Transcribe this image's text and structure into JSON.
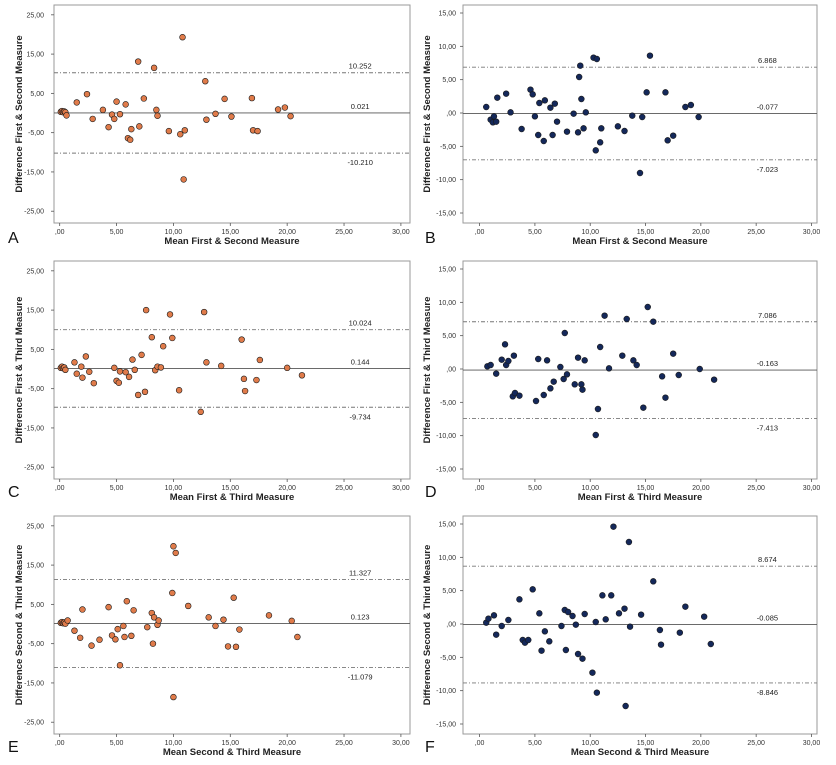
{
  "colors": {
    "orange": "#e07b4a",
    "navy": "#14285a",
    "frame": "#9a9a9a",
    "refline": "#777777"
  },
  "chart_data": [
    {
      "type": "scatter",
      "panel": "A",
      "xlabel": "Mean First & Second Measure",
      "ylabel": "Difference First & Second Measure",
      "xlim": [
        -0.5,
        30.8
      ],
      "ylim": [
        -28,
        27.5
      ],
      "xticks": [
        ",00",
        "5,00",
        "10,00",
        "15,00",
        "20,00",
        "25,00",
        "30,00"
      ],
      "yticks": [
        "25,00",
        "15,00",
        "5,00",
        "-5,00",
        "-15,00",
        "-25,00"
      ],
      "marker_color": "orange",
      "reference_lines": [
        {
          "value": 10.252,
          "label": "10.252",
          "style": "dashdot"
        },
        {
          "value": 0.021,
          "label": "0.021",
          "style": "solid"
        },
        {
          "value": -10.21,
          "label": "-10.210",
          "style": "dashdot"
        }
      ],
      "points": [
        [
          0.1,
          0.3
        ],
        [
          0.2,
          0.5
        ],
        [
          0.3,
          0.2
        ],
        [
          0.4,
          0.4
        ],
        [
          0.5,
          0.2
        ],
        [
          0.6,
          -0.6
        ],
        [
          1.5,
          2.7
        ],
        [
          2.4,
          4.8
        ],
        [
          2.9,
          -1.5
        ],
        [
          3.8,
          0.8
        ],
        [
          4.3,
          -3.6
        ],
        [
          4.6,
          -0.4
        ],
        [
          4.8,
          -1.5
        ],
        [
          5.0,
          2.9
        ],
        [
          5.3,
          -0.3
        ],
        [
          5.8,
          2.2
        ],
        [
          6.0,
          -6.4
        ],
        [
          6.2,
          -6.8
        ],
        [
          6.3,
          -4.1
        ],
        [
          6.9,
          13.1
        ],
        [
          7.0,
          -3.4
        ],
        [
          7.4,
          3.7
        ],
        [
          8.3,
          11.5
        ],
        [
          8.5,
          0.8
        ],
        [
          8.6,
          -0.7
        ],
        [
          9.6,
          -4.6
        ],
        [
          10.6,
          -5.4
        ],
        [
          10.8,
          19.3
        ],
        [
          10.9,
          -16.9
        ],
        [
          11.0,
          -4.4
        ],
        [
          12.8,
          8.1
        ],
        [
          12.9,
          -1.7
        ],
        [
          13.7,
          -0.2
        ],
        [
          14.5,
          3.6
        ],
        [
          15.1,
          -0.9
        ],
        [
          16.9,
          3.8
        ],
        [
          17.0,
          -4.4
        ],
        [
          17.4,
          -4.6
        ],
        [
          19.2,
          0.9
        ],
        [
          19.8,
          1.4
        ],
        [
          20.3,
          -0.8
        ]
      ]
    },
    {
      "type": "scatter",
      "panel": "B",
      "xlabel": "Mean First & Second Measure",
      "ylabel": "Difference First & Second Measure",
      "xlim": [
        -1.5,
        30.5
      ],
      "ylim": [
        -16.5,
        16.2
      ],
      "xticks": [
        ",00",
        "5,00",
        "10,00",
        "15,00",
        "20,00",
        "25,00",
        "30,00"
      ],
      "yticks": [
        "15,00",
        "10,00",
        "5,00",
        ",00",
        "-5,00",
        "-10,00",
        "-15,00"
      ],
      "marker_color": "navy",
      "reference_lines": [
        {
          "value": 6.868,
          "label": "6.868",
          "style": "dashdot"
        },
        {
          "value": -0.077,
          "label": "-0.077",
          "style": "solid"
        },
        {
          "value": -7.023,
          "label": "-7.023",
          "style": "dashdot"
        }
      ],
      "points": [
        [
          0.6,
          0.9
        ],
        [
          1.0,
          -1.0
        ],
        [
          1.2,
          -1.4
        ],
        [
          1.3,
          -0.5
        ],
        [
          1.5,
          -1.3
        ],
        [
          1.6,
          2.3
        ],
        [
          2.4,
          2.9
        ],
        [
          2.8,
          0.1
        ],
        [
          3.8,
          -2.4
        ],
        [
          4.6,
          3.5
        ],
        [
          4.8,
          2.8
        ],
        [
          5.0,
          -0.5
        ],
        [
          5.3,
          -3.3
        ],
        [
          5.4,
          1.5
        ],
        [
          5.8,
          -4.2
        ],
        [
          5.9,
          1.9
        ],
        [
          6.4,
          0.8
        ],
        [
          6.6,
          -3.3
        ],
        [
          6.8,
          1.4
        ],
        [
          7.0,
          -1.3
        ],
        [
          7.9,
          -2.8
        ],
        [
          8.5,
          -0.1
        ],
        [
          8.9,
          -2.9
        ],
        [
          9.0,
          5.4
        ],
        [
          9.1,
          7.1
        ],
        [
          9.2,
          2.1
        ],
        [
          9.4,
          -2.3
        ],
        [
          9.6,
          0.1
        ],
        [
          10.3,
          8.3
        ],
        [
          10.5,
          -5.6
        ],
        [
          10.6,
          8.1
        ],
        [
          10.9,
          -4.4
        ],
        [
          11.0,
          -2.3
        ],
        [
          12.5,
          -2.0
        ],
        [
          13.1,
          -2.7
        ],
        [
          13.8,
          -0.4
        ],
        [
          14.5,
          -9.0
        ],
        [
          14.7,
          -0.6
        ],
        [
          15.1,
          3.1
        ],
        [
          15.4,
          8.6
        ],
        [
          16.8,
          3.1
        ],
        [
          17.0,
          -4.1
        ],
        [
          17.5,
          -3.4
        ],
        [
          18.6,
          0.9
        ],
        [
          19.1,
          1.2
        ],
        [
          19.8,
          -0.6
        ]
      ]
    },
    {
      "type": "scatter",
      "panel": "C",
      "xlabel": "Mean First & Third Measure",
      "ylabel": "Difference First & Third Measure",
      "xlim": [
        -0.5,
        30.8
      ],
      "ylim": [
        -28,
        27.5
      ],
      "xticks": [
        ",00",
        "5,00",
        "10,00",
        "15,00",
        "20,00",
        "25,00",
        "30,00"
      ],
      "yticks": [
        "25,00",
        "15,00",
        "5,00",
        "-5,00",
        "-15,00",
        "-25,00"
      ],
      "marker_color": "orange",
      "reference_lines": [
        {
          "value": 10.024,
          "label": "10.024",
          "style": "dashdot"
        },
        {
          "value": 0.144,
          "label": "0.144",
          "style": "solid"
        },
        {
          "value": -9.734,
          "label": "-9.734",
          "style": "dashdot"
        }
      ],
      "points": [
        [
          0.1,
          0.3
        ],
        [
          0.2,
          0.6
        ],
        [
          0.3,
          0.2
        ],
        [
          0.4,
          0.4
        ],
        [
          0.5,
          -0.2
        ],
        [
          1.3,
          1.7
        ],
        [
          1.5,
          -1.2
        ],
        [
          1.9,
          0.6
        ],
        [
          2.0,
          -2.2
        ],
        [
          2.3,
          3.2
        ],
        [
          2.6,
          -0.7
        ],
        [
          3.0,
          -3.6
        ],
        [
          4.8,
          0.3
        ],
        [
          5.0,
          -3.0
        ],
        [
          5.2,
          -3.5
        ],
        [
          5.3,
          -0.6
        ],
        [
          5.8,
          -0.8
        ],
        [
          6.1,
          -2.0
        ],
        [
          6.4,
          2.4
        ],
        [
          6.6,
          -0.2
        ],
        [
          6.9,
          -6.6
        ],
        [
          7.2,
          3.6
        ],
        [
          7.5,
          -5.8
        ],
        [
          7.6,
          15.0
        ],
        [
          8.1,
          8.1
        ],
        [
          8.4,
          -0.3
        ],
        [
          8.6,
          0.6
        ],
        [
          8.9,
          0.4
        ],
        [
          9.1,
          5.8
        ],
        [
          9.7,
          13.9
        ],
        [
          9.9,
          7.9
        ],
        [
          10.5,
          -5.4
        ],
        [
          12.4,
          -10.9
        ],
        [
          12.7,
          14.5
        ],
        [
          12.9,
          1.7
        ],
        [
          14.2,
          0.8
        ],
        [
          16.0,
          7.5
        ],
        [
          16.2,
          -2.5
        ],
        [
          16.3,
          -5.6
        ],
        [
          17.3,
          -2.8
        ],
        [
          17.6,
          2.3
        ],
        [
          20.0,
          0.3
        ],
        [
          21.3,
          -1.6
        ]
      ]
    },
    {
      "type": "scatter",
      "panel": "D",
      "xlabel": "Mean First & Third Measure",
      "ylabel": "Difference First & Third Measure",
      "xlim": [
        -1.5,
        30.5
      ],
      "ylim": [
        -16.5,
        16.2
      ],
      "xticks": [
        ",00",
        "5,00",
        "10,00",
        "15,00",
        "20,00",
        "25,00",
        "30,00"
      ],
      "yticks": [
        "15,00",
        "10,00",
        "5,00",
        ",00",
        "-5,00",
        "-10,00",
        "-15,00"
      ],
      "marker_color": "navy",
      "reference_lines": [
        {
          "value": 7.086,
          "label": "7.086",
          "style": "dashdot"
        },
        {
          "value": -0.163,
          "label": "-0.163",
          "style": "solid"
        },
        {
          "value": -7.413,
          "label": "-7.413",
          "style": "dashdot"
        }
      ],
      "points": [
        [
          0.7,
          0.4
        ],
        [
          1.0,
          0.6
        ],
        [
          1.5,
          -0.7
        ],
        [
          2.0,
          1.4
        ],
        [
          2.3,
          3.7
        ],
        [
          2.4,
          0.6
        ],
        [
          2.6,
          1.2
        ],
        [
          3.0,
          -4.1
        ],
        [
          3.1,
          2.0
        ],
        [
          3.2,
          -3.6
        ],
        [
          3.6,
          -4.0
        ],
        [
          5.1,
          -4.8
        ],
        [
          5.3,
          1.5
        ],
        [
          5.8,
          -3.9
        ],
        [
          6.1,
          1.3
        ],
        [
          6.4,
          -2.9
        ],
        [
          6.7,
          -1.9
        ],
        [
          7.3,
          0.3
        ],
        [
          7.6,
          -1.5
        ],
        [
          7.7,
          5.4
        ],
        [
          7.9,
          -0.8
        ],
        [
          8.6,
          -2.3
        ],
        [
          8.9,
          1.7
        ],
        [
          9.2,
          -2.3
        ],
        [
          9.3,
          -3.1
        ],
        [
          9.5,
          1.3
        ],
        [
          10.5,
          -9.9
        ],
        [
          10.7,
          -6.0
        ],
        [
          10.9,
          3.3
        ],
        [
          11.3,
          8.0
        ],
        [
          11.7,
          0.1
        ],
        [
          12.9,
          2.0
        ],
        [
          13.3,
          7.5
        ],
        [
          13.9,
          1.3
        ],
        [
          14.2,
          0.6
        ],
        [
          14.8,
          -5.8
        ],
        [
          15.2,
          9.3
        ],
        [
          15.7,
          7.1
        ],
        [
          16.5,
          -1.1
        ],
        [
          16.8,
          -4.3
        ],
        [
          17.5,
          2.3
        ],
        [
          18.0,
          -0.9
        ],
        [
          19.9,
          0.0
        ],
        [
          21.2,
          -1.6
        ]
      ]
    },
    {
      "type": "scatter",
      "panel": "E",
      "xlabel": "Mean Second & Third Measure",
      "ylabel": "Difference Second & Third Measure",
      "xlim": [
        -0.5,
        30.8
      ],
      "ylim": [
        -28,
        27.5
      ],
      "xticks": [
        ",00",
        "5,00",
        "10,00",
        "15,00",
        "20,00",
        "25,00",
        "30,00"
      ],
      "yticks": [
        "25,00",
        "15,00",
        "5,00",
        "-5,00",
        "-15,00",
        "-25,00"
      ],
      "marker_color": "orange",
      "reference_lines": [
        {
          "value": 11.327,
          "label": "11.327",
          "style": "dashdot"
        },
        {
          "value": 0.123,
          "label": "0.123",
          "style": "solid"
        },
        {
          "value": -11.079,
          "label": "-11.079",
          "style": "dashdot"
        }
      ],
      "points": [
        [
          0.1,
          0.3
        ],
        [
          0.2,
          0.5
        ],
        [
          0.3,
          0.2
        ],
        [
          0.4,
          0.4
        ],
        [
          0.5,
          0.1
        ],
        [
          0.7,
          0.9
        ],
        [
          1.3,
          -1.7
        ],
        [
          1.8,
          -3.5
        ],
        [
          2.0,
          3.7
        ],
        [
          2.8,
          -5.5
        ],
        [
          3.5,
          -4.0
        ],
        [
          4.3,
          4.3
        ],
        [
          4.6,
          -2.9
        ],
        [
          4.9,
          -3.9
        ],
        [
          5.1,
          -1.3
        ],
        [
          5.3,
          -10.5
        ],
        [
          5.6,
          -0.5
        ],
        [
          5.7,
          -3.3
        ],
        [
          5.9,
          5.8
        ],
        [
          6.3,
          -3.0
        ],
        [
          6.5,
          3.5
        ],
        [
          7.7,
          -0.8
        ],
        [
          8.1,
          2.8
        ],
        [
          8.2,
          -5.0
        ],
        [
          8.3,
          1.7
        ],
        [
          8.6,
          -0.2
        ],
        [
          8.7,
          0.9
        ],
        [
          9.9,
          7.9
        ],
        [
          10.0,
          -18.6
        ],
        [
          10.0,
          19.8
        ],
        [
          10.2,
          18.1
        ],
        [
          11.3,
          4.6
        ],
        [
          13.1,
          1.7
        ],
        [
          13.7,
          -0.5
        ],
        [
          14.4,
          1.1
        ],
        [
          14.8,
          -5.7
        ],
        [
          15.3,
          6.7
        ],
        [
          15.5,
          -5.8
        ],
        [
          15.8,
          -1.4
        ],
        [
          18.4,
          2.2
        ],
        [
          20.4,
          0.8
        ],
        [
          20.9,
          -3.3
        ]
      ]
    },
    {
      "type": "scatter",
      "panel": "F",
      "xlabel": "Mean Second & Third Measure",
      "ylabel": "Difference Second & Third Measure",
      "xlim": [
        -1.5,
        30.5
      ],
      "ylim": [
        -16.5,
        16.2
      ],
      "xticks": [
        ",00",
        "5,00",
        "10,00",
        "15,00",
        "20,00",
        "25,00",
        "30,00"
      ],
      "yticks": [
        "15,00",
        "10,00",
        "5,00",
        ",00",
        "-5,00",
        "-10,00",
        "-15,00"
      ],
      "marker_color": "navy",
      "reference_lines": [
        {
          "value": 8.674,
          "label": "8.674",
          "style": "dashdot"
        },
        {
          "value": -0.085,
          "label": "-0.085",
          "style": "solid"
        },
        {
          "value": -8.846,
          "label": "-8.846",
          "style": "dashdot"
        }
      ],
      "points": [
        [
          0.6,
          0.2
        ],
        [
          0.8,
          0.8
        ],
        [
          1.3,
          1.3
        ],
        [
          1.5,
          -1.6
        ],
        [
          2.0,
          -0.3
        ],
        [
          2.6,
          0.6
        ],
        [
          3.6,
          3.7
        ],
        [
          3.9,
          -2.4
        ],
        [
          4.1,
          -2.8
        ],
        [
          4.4,
          -2.4
        ],
        [
          4.8,
          5.2
        ],
        [
          5.4,
          1.6
        ],
        [
          5.6,
          -4.0
        ],
        [
          5.9,
          -1.1
        ],
        [
          6.3,
          -2.6
        ],
        [
          7.4,
          -0.3
        ],
        [
          7.7,
          2.1
        ],
        [
          7.8,
          -3.9
        ],
        [
          8.0,
          1.8
        ],
        [
          8.4,
          1.2
        ],
        [
          8.7,
          -0.1
        ],
        [
          8.9,
          -4.5
        ],
        [
          9.3,
          -5.2
        ],
        [
          9.5,
          1.5
        ],
        [
          10.2,
          -7.3
        ],
        [
          10.5,
          0.3
        ],
        [
          10.6,
          -10.3
        ],
        [
          11.1,
          4.3
        ],
        [
          11.4,
          0.7
        ],
        [
          11.9,
          4.3
        ],
        [
          12.1,
          14.6
        ],
        [
          12.6,
          1.6
        ],
        [
          13.1,
          2.3
        ],
        [
          13.2,
          -12.3
        ],
        [
          13.5,
          12.3
        ],
        [
          13.6,
          -0.4
        ],
        [
          14.6,
          1.4
        ],
        [
          15.7,
          6.4
        ],
        [
          16.3,
          -0.9
        ],
        [
          16.4,
          -3.1
        ],
        [
          18.1,
          -1.3
        ],
        [
          18.6,
          2.6
        ],
        [
          20.3,
          1.1
        ],
        [
          20.9,
          -3.0
        ]
      ]
    }
  ]
}
